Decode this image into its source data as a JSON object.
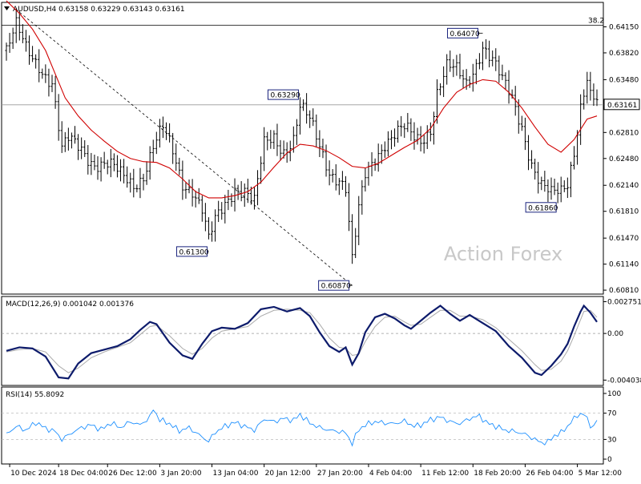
{
  "chart_data": {
    "type": "candlestick",
    "symbol_header": "AUDUSD,H4",
    "ohlc_header": "0.63158 0.63229 0.63143 0.63161",
    "last_price": "0.63161",
    "watermark": "Action Forex",
    "price_ticks": [
      "0.64150",
      "0.63820",
      "0.63480",
      "0.63161",
      "0.62810",
      "0.62480",
      "0.62140",
      "0.61810",
      "0.61470",
      "0.61140",
      "0.60810"
    ],
    "price_tick_values": [
      0.6415,
      0.6382,
      0.6348,
      0.63161,
      0.6281,
      0.6248,
      0.6214,
      0.6181,
      0.6147,
      0.6114,
      0.6081
    ],
    "price_range": [
      0.6076,
      0.6446
    ],
    "fib_label": "38.2",
    "fib_level": 0.6417,
    "annotations": [
      {
        "text": "0.64070",
        "price": 0.6407,
        "bar": 146
      },
      {
        "text": "0.63290",
        "price": 0.6329,
        "bar": 90
      },
      {
        "text": "0.61300",
        "price": 0.613,
        "bar": 62
      },
      {
        "text": "0.60870",
        "price": 0.6087,
        "bar": 106
      },
      {
        "text": "0.61860",
        "price": 0.6186,
        "bar": 169
      }
    ],
    "trendline": {
      "from_bar": 3,
      "from_price": 0.6437,
      "to_bar": 106,
      "to_price": 0.6087
    },
    "x_labels": [
      "10 Dec 2024",
      "18 Dec 04:00",
      "26 Dec 12:00",
      "3 Jan 20:00",
      "13 Jan 04:00",
      "20 Jan 12:00",
      "27 Jan 20:00",
      "4 Feb 04:00",
      "11 Feb 12:00",
      "18 Feb 20:00",
      "26 Feb 04:00",
      "5 Mar 12:00"
    ],
    "x_label_bars": [
      1,
      16,
      31,
      47,
      63,
      79,
      95,
      111,
      127,
      143,
      159,
      175
    ],
    "bar_count": 182,
    "price_path": [
      [
        0,
        0.6385
      ],
      [
        3,
        0.6412
      ],
      [
        6,
        0.6385
      ],
      [
        10,
        0.637
      ],
      [
        14,
        0.6345
      ],
      [
        17,
        0.6255
      ],
      [
        19,
        0.6268
      ],
      [
        23,
        0.6262
      ],
      [
        27,
        0.6245
      ],
      [
        31,
        0.6238
      ],
      [
        35,
        0.6225
      ],
      [
        39,
        0.6218
      ],
      [
        42,
        0.623
      ],
      [
        45,
        0.6262
      ],
      [
        48,
        0.6282
      ],
      [
        51,
        0.6255
      ],
      [
        54,
        0.622
      ],
      [
        57,
        0.6212
      ],
      [
        60,
        0.6182
      ],
      [
        62,
        0.614
      ],
      [
        64,
        0.6165
      ],
      [
        67,
        0.619
      ],
      [
        70,
        0.6215
      ],
      [
        73,
        0.621
      ],
      [
        76,
        0.619
      ],
      [
        79,
        0.6262
      ],
      [
        82,
        0.6275
      ],
      [
        85,
        0.6262
      ],
      [
        88,
        0.6275
      ],
      [
        90,
        0.6312
      ],
      [
        93,
        0.6292
      ],
      [
        96,
        0.6262
      ],
      [
        99,
        0.6235
      ],
      [
        102,
        0.6225
      ],
      [
        104,
        0.621
      ],
      [
        106,
        0.6115
      ],
      [
        108,
        0.6178
      ],
      [
        110,
        0.6225
      ],
      [
        113,
        0.6252
      ],
      [
        116,
        0.6272
      ],
      [
        119,
        0.6278
      ],
      [
        122,
        0.6282
      ],
      [
        125,
        0.6272
      ],
      [
        127,
        0.6272
      ],
      [
        130,
        0.629
      ],
      [
        132,
        0.6335
      ],
      [
        135,
        0.6362
      ],
      [
        138,
        0.6355
      ],
      [
        141,
        0.6342
      ],
      [
        144,
        0.6372
      ],
      [
        146,
        0.6395
      ],
      [
        149,
        0.6372
      ],
      [
        152,
        0.6342
      ],
      [
        155,
        0.6322
      ],
      [
        158,
        0.6292
      ],
      [
        161,
        0.6245
      ],
      [
        164,
        0.6212
      ],
      [
        167,
        0.6198
      ],
      [
        170,
        0.6205
      ],
      [
        172,
        0.622
      ],
      [
        174,
        0.6262
      ],
      [
        176,
        0.6318
      ],
      [
        178,
        0.635
      ],
      [
        179,
        0.6325
      ],
      [
        181,
        0.6316
      ]
    ],
    "ma_path": [
      [
        0,
        0.6448
      ],
      [
        4,
        0.6432
      ],
      [
        8,
        0.6412
      ],
      [
        12,
        0.6385
      ],
      [
        15,
        0.6355
      ],
      [
        18,
        0.6325
      ],
      [
        22,
        0.6302
      ],
      [
        26,
        0.6284
      ],
      [
        30,
        0.627
      ],
      [
        34,
        0.6257
      ],
      [
        38,
        0.6248
      ],
      [
        42,
        0.6244
      ],
      [
        46,
        0.6243
      ],
      [
        50,
        0.6236
      ],
      [
        54,
        0.6222
      ],
      [
        58,
        0.6206
      ],
      [
        62,
        0.6198
      ],
      [
        66,
        0.6198
      ],
      [
        70,
        0.6201
      ],
      [
        74,
        0.6206
      ],
      [
        78,
        0.6218
      ],
      [
        82,
        0.6237
      ],
      [
        86,
        0.6255
      ],
      [
        90,
        0.6266
      ],
      [
        94,
        0.6264
      ],
      [
        98,
        0.6258
      ],
      [
        102,
        0.6249
      ],
      [
        106,
        0.6238
      ],
      [
        110,
        0.6236
      ],
      [
        114,
        0.6242
      ],
      [
        118,
        0.6252
      ],
      [
        122,
        0.6262
      ],
      [
        126,
        0.6271
      ],
      [
        130,
        0.6286
      ],
      [
        134,
        0.6312
      ],
      [
        138,
        0.6332
      ],
      [
        142,
        0.6342
      ],
      [
        146,
        0.6348
      ],
      [
        150,
        0.6346
      ],
      [
        154,
        0.6332
      ],
      [
        158,
        0.6312
      ],
      [
        162,
        0.6288
      ],
      [
        166,
        0.6266
      ],
      [
        170,
        0.6256
      ],
      [
        174,
        0.6272
      ],
      [
        178,
        0.6298
      ],
      [
        181,
        0.6302
      ]
    ],
    "macd": {
      "label": "MACD(12,26,9) 0.001042 0.001376",
      "ticks": [
        "0.002751",
        "0.00",
        "-0.004038"
      ],
      "tick_values": [
        0.002751,
        0.0,
        -0.004038
      ],
      "range": [
        -0.0045,
        0.0032
      ],
      "main_path": [
        [
          0,
          -0.0015
        ],
        [
          4,
          -0.0012
        ],
        [
          8,
          -0.0013
        ],
        [
          12,
          -0.002
        ],
        [
          16,
          -0.0038
        ],
        [
          19,
          -0.0039
        ],
        [
          22,
          -0.0026
        ],
        [
          26,
          -0.0017
        ],
        [
          30,
          -0.0014
        ],
        [
          34,
          -0.0011
        ],
        [
          38,
          -0.0005
        ],
        [
          41,
          0.0003
        ],
        [
          44,
          0.001
        ],
        [
          46,
          0.0008
        ],
        [
          50,
          -0.0008
        ],
        [
          54,
          -0.0019
        ],
        [
          57,
          -0.0022
        ],
        [
          60,
          -0.0009
        ],
        [
          63,
          0.0002
        ],
        [
          66,
          0.0005
        ],
        [
          70,
          0.0004
        ],
        [
          74,
          0.0009
        ],
        [
          78,
          0.0021
        ],
        [
          82,
          0.0023
        ],
        [
          86,
          0.0019
        ],
        [
          90,
          0.0022
        ],
        [
          93,
          0.0015
        ],
        [
          96,
          0.0001
        ],
        [
          99,
          -0.0011
        ],
        [
          102,
          -0.0016
        ],
        [
          104,
          -0.0012
        ],
        [
          106,
          -0.0027
        ],
        [
          108,
          -0.0017
        ],
        [
          110,
          0.0001
        ],
        [
          113,
          0.0014
        ],
        [
          116,
          0.0017
        ],
        [
          119,
          0.0013
        ],
        [
          122,
          0.0007
        ],
        [
          124,
          0.0004
        ],
        [
          127,
          0.0011
        ],
        [
          130,
          0.0018
        ],
        [
          133,
          0.0024
        ],
        [
          136,
          0.0017
        ],
        [
          139,
          0.0011
        ],
        [
          142,
          0.0016
        ],
        [
          146,
          0.0009
        ],
        [
          150,
          0.0002
        ],
        [
          154,
          -0.0011
        ],
        [
          158,
          -0.0021
        ],
        [
          162,
          -0.0034
        ],
        [
          164,
          -0.0036
        ],
        [
          167,
          -0.0028
        ],
        [
          170,
          -0.0018
        ],
        [
          172,
          -0.0009
        ],
        [
          174,
          0.0006
        ],
        [
          176,
          0.0019
        ],
        [
          177,
          0.0024
        ],
        [
          179,
          0.0018
        ],
        [
          181,
          0.001
        ]
      ],
      "signal_path": [
        [
          0,
          -0.0016
        ],
        [
          4,
          -0.0014
        ],
        [
          8,
          -0.0013
        ],
        [
          12,
          -0.0016
        ],
        [
          16,
          -0.0028
        ],
        [
          19,
          -0.0034
        ],
        [
          22,
          -0.003
        ],
        [
          26,
          -0.0021
        ],
        [
          30,
          -0.0016
        ],
        [
          34,
          -0.0012
        ],
        [
          38,
          -0.0008
        ],
        [
          41,
          -0.0001
        ],
        [
          44,
          0.0006
        ],
        [
          46,
          0.0007
        ],
        [
          50,
          -0.0002
        ],
        [
          54,
          -0.0013
        ],
        [
          57,
          -0.0018
        ],
        [
          60,
          -0.0013
        ],
        [
          63,
          -0.0004
        ],
        [
          66,
          0.0002
        ],
        [
          70,
          0.0004
        ],
        [
          74,
          0.0006
        ],
        [
          78,
          0.0015
        ],
        [
          82,
          0.002
        ],
        [
          86,
          0.0021
        ],
        [
          90,
          0.002
        ],
        [
          93,
          0.0018
        ],
        [
          96,
          0.0008
        ],
        [
          99,
          -0.0004
        ],
        [
          102,
          -0.0012
        ],
        [
          104,
          -0.0013
        ],
        [
          106,
          -0.0019
        ],
        [
          108,
          -0.0018
        ],
        [
          110,
          -0.0007
        ],
        [
          113,
          0.0006
        ],
        [
          116,
          0.0014
        ],
        [
          119,
          0.0015
        ],
        [
          122,
          0.001
        ],
        [
          124,
          0.0007
        ],
        [
          127,
          0.0008
        ],
        [
          130,
          0.0014
        ],
        [
          133,
          0.002
        ],
        [
          136,
          0.002
        ],
        [
          139,
          0.0015
        ],
        [
          142,
          0.0015
        ],
        [
          146,
          0.0012
        ],
        [
          150,
          0.0005
        ],
        [
          154,
          -0.0005
        ],
        [
          158,
          -0.0015
        ],
        [
          162,
          -0.0027
        ],
        [
          164,
          -0.0032
        ],
        [
          167,
          -0.0031
        ],
        [
          170,
          -0.0024
        ],
        [
          172,
          -0.0015
        ],
        [
          174,
          -0.0002
        ],
        [
          176,
          0.0012
        ],
        [
          177,
          0.0019
        ],
        [
          179,
          0.002
        ],
        [
          181,
          0.0014
        ]
      ]
    },
    "rsi": {
      "label": "RSI(14) 55.8092",
      "ticks": [
        "100",
        "70",
        "30",
        "0"
      ],
      "tick_values": [
        100,
        70,
        30,
        0
      ],
      "range": [
        0,
        100
      ],
      "path": [
        [
          0,
          38
        ],
        [
          3,
          50
        ],
        [
          6,
          44
        ],
        [
          9,
          56
        ],
        [
          12,
          47
        ],
        [
          15,
          42
        ],
        [
          17,
          30
        ],
        [
          20,
          40
        ],
        [
          23,
          48
        ],
        [
          26,
          52
        ],
        [
          29,
          45
        ],
        [
          32,
          55
        ],
        [
          35,
          48
        ],
        [
          38,
          57
        ],
        [
          41,
          52
        ],
        [
          44,
          64
        ],
        [
          45,
          76
        ],
        [
          47,
          60
        ],
        [
          50,
          54
        ],
        [
          53,
          43
        ],
        [
          56,
          48
        ],
        [
          59,
          37
        ],
        [
          62,
          27
        ],
        [
          64,
          41
        ],
        [
          67,
          50
        ],
        [
          70,
          56
        ],
        [
          73,
          50
        ],
        [
          76,
          44
        ],
        [
          79,
          61
        ],
        [
          82,
          57
        ],
        [
          85,
          62
        ],
        [
          88,
          59
        ],
        [
          90,
          68
        ],
        [
          93,
          55
        ],
        [
          96,
          48
        ],
        [
          99,
          44
        ],
        [
          102,
          42
        ],
        [
          104,
          40
        ],
        [
          106,
          24
        ],
        [
          108,
          45
        ],
        [
          110,
          52
        ],
        [
          113,
          57
        ],
        [
          116,
          55
        ],
        [
          119,
          54
        ],
        [
          122,
          58
        ],
        [
          125,
          50
        ],
        [
          127,
          52
        ],
        [
          130,
          60
        ],
        [
          133,
          64
        ],
        [
          136,
          57
        ],
        [
          139,
          54
        ],
        [
          142,
          62
        ],
        [
          145,
          66
        ],
        [
          147,
          56
        ],
        [
          150,
          50
        ],
        [
          153,
          44
        ],
        [
          156,
          42
        ],
        [
          159,
          38
        ],
        [
          162,
          30
        ],
        [
          164,
          25
        ],
        [
          166,
          26
        ],
        [
          168,
          36
        ],
        [
          170,
          40
        ],
        [
          172,
          50
        ],
        [
          174,
          62
        ],
        [
          176,
          70
        ],
        [
          178,
          63
        ],
        [
          179,
          49
        ],
        [
          181,
          56
        ]
      ]
    }
  }
}
